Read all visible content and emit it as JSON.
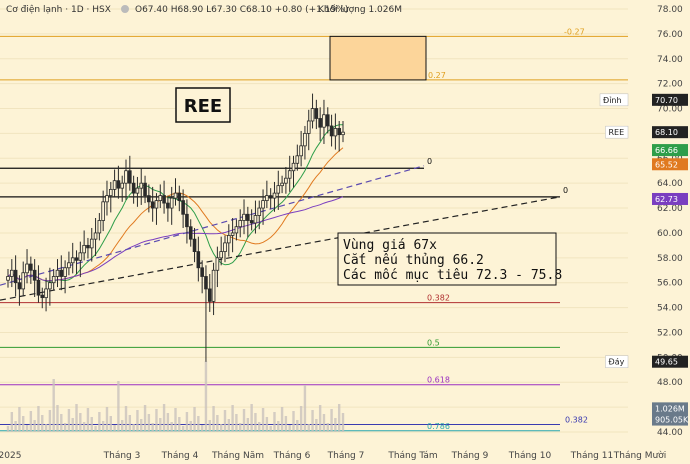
{
  "header": {
    "symbol_desc": "Cơ điện lạnh · 1D · HSX",
    "ohlc": "O67.40  H68.90  L67.30  C68.10  +0.80 (+1.19%)",
    "volume": "Khối lượng 1.026M"
  },
  "ticker_label": "REE",
  "annotation_lines": [
    "Vùng giá 67x",
    "Cắt nếu thủng 66.2",
    "Các mốc mục tiêu 72.3 - 75.8"
  ],
  "chart_data": {
    "type": "candlestick",
    "y_range": [
      44,
      78
    ],
    "y_ticks": [
      44,
      46,
      48,
      50,
      52,
      54,
      56,
      58,
      60,
      62,
      64,
      66,
      68,
      70,
      72,
      74,
      76,
      78
    ],
    "x_labels": [
      "2025",
      "Tháng 3",
      "Tháng 4",
      "Tháng Năm",
      "Tháng 6",
      "Tháng 7",
      "Tháng Tám",
      "Tháng 9",
      "Tháng 10",
      "Tháng 11",
      "Tháng Mười"
    ],
    "fib_levels": [
      {
        "label": "-0.27",
        "value": 75.8,
        "color": "#e0a020"
      },
      {
        "label": "0.27",
        "value": 72.3,
        "color": "#e0a020"
      },
      {
        "label": "0.382",
        "value": 54.4,
        "color": "#b03030"
      },
      {
        "label": "0.5",
        "value": 50.8,
        "color": "#2f9a2f"
      },
      {
        "label": "0.618",
        "value": 47.8,
        "color": "#9b30c0"
      },
      {
        "label": "0.382",
        "value": 44.6,
        "color": "#3a3ab0"
      },
      {
        "label": "0.786",
        "value": 44.1,
        "color": "#2aa8b0"
      }
    ],
    "horizontal_lines": [
      {
        "label": "0",
        "value": 65.2
      },
      {
        "label": "0",
        "value": 62.9
      }
    ],
    "target_box": {
      "from": 72.3,
      "to": 75.8
    },
    "price_tags": [
      {
        "label": "Đỉnh",
        "value": "70.70",
        "price": 70.7,
        "color": "#222"
      },
      {
        "label": "REE",
        "value": "68.10",
        "price": 68.1,
        "color": "#222"
      },
      {
        "label": "",
        "value": "66.66",
        "price": 66.66,
        "color": "#2e9e4a"
      },
      {
        "label": "",
        "value": "65.52",
        "price": 65.52,
        "color": "#e07a20"
      },
      {
        "label": "",
        "value": "62.73",
        "price": 62.73,
        "color": "#7a3ec0"
      },
      {
        "label": "Đáy",
        "value": "49.65",
        "price": 49.65,
        "color": "#222"
      },
      {
        "label": "",
        "value": "1.026M",
        "price": 45.9,
        "color": "#6a7a8a"
      },
      {
        "label": "",
        "value": "905.05K",
        "price": 45.0,
        "color": "#6a7a8a"
      }
    ],
    "close": [
      56.5,
      57,
      56,
      55.5,
      56.8,
      57.5,
      57,
      56.2,
      55,
      54.8,
      55.5,
      56,
      56.5,
      57,
      56.5,
      57.2,
      57.6,
      58,
      57.8,
      58.4,
      59,
      58.8,
      59.5,
      60,
      61,
      62.5,
      63,
      63.5,
      64.2,
      63.6,
      64,
      65,
      64,
      63.2,
      63.6,
      64,
      63,
      62.5,
      62,
      62.6,
      63,
      62.4,
      62,
      62.8,
      63.2,
      62.6,
      61.5,
      60.5,
      59.5,
      58.5,
      57.2,
      56.5,
      55.5,
      54.5,
      57,
      58,
      58.5,
      59.2,
      59.8,
      60,
      60.5,
      61,
      61.5,
      61,
      60.8,
      61.4,
      62,
      62.6,
      63,
      62.8,
      63.2,
      63.8,
      64,
      64.4,
      65,
      65.6,
      66.2,
      67,
      68,
      69,
      70,
      69.2,
      68.5,
      69.5,
      68.6,
      67.8,
      68.4,
      67.9,
      68.1
    ]
  }
}
